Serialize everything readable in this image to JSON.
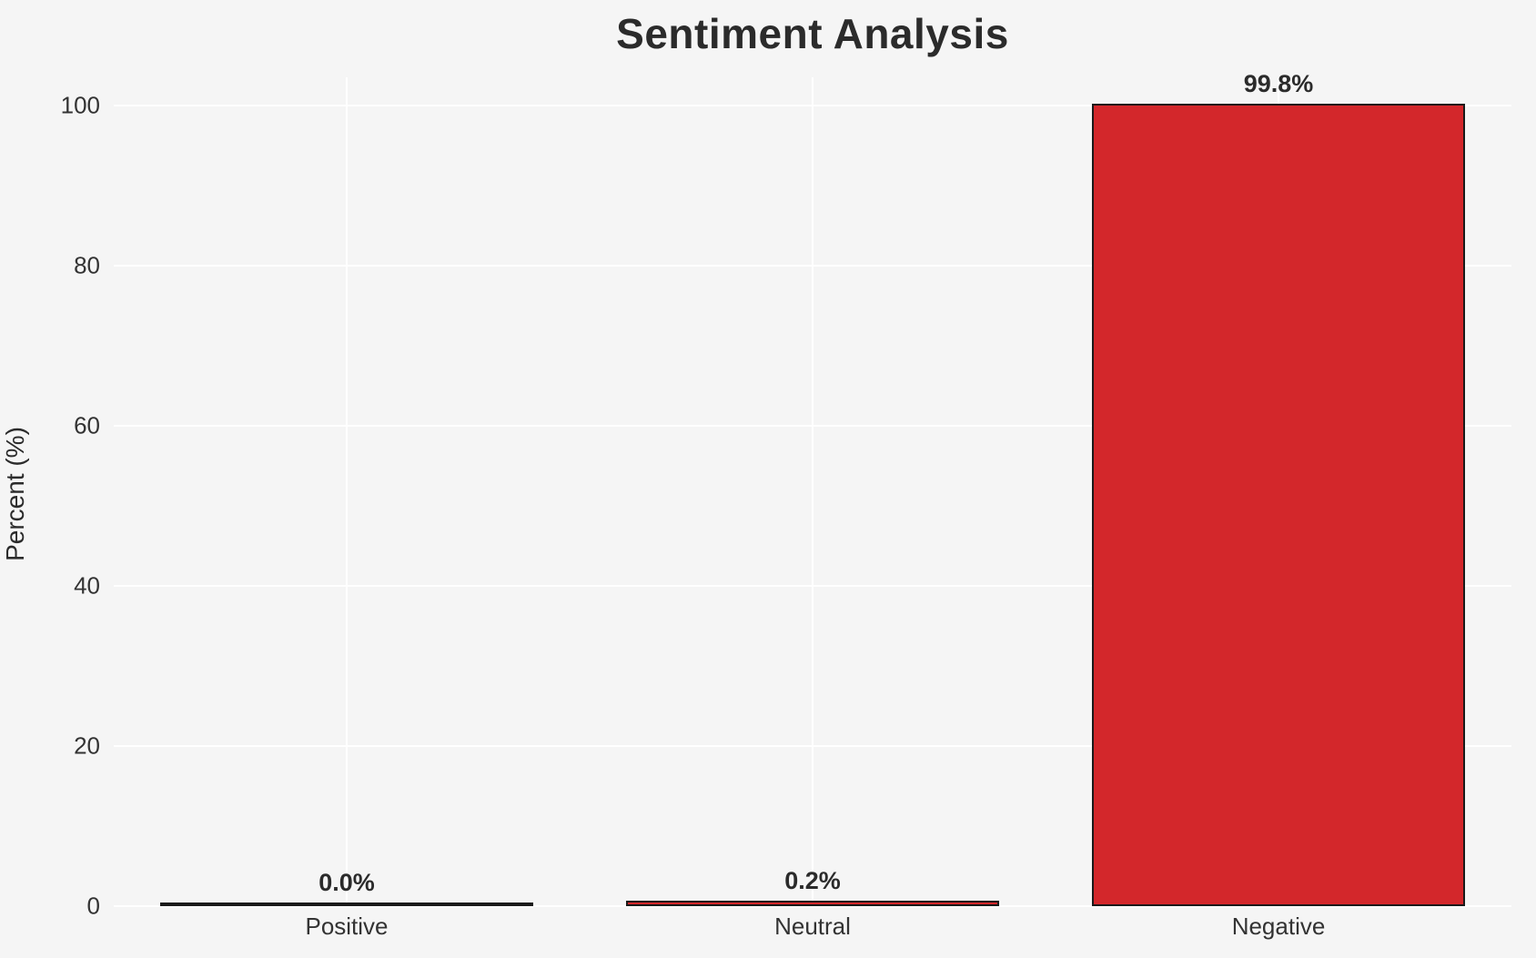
{
  "chart_data": {
    "type": "bar",
    "title": "Sentiment Analysis",
    "ylabel": "Percent (%)",
    "xlabel": "",
    "categories": [
      "Positive",
      "Neutral",
      "Negative"
    ],
    "values": [
      0.0,
      0.2,
      99.8
    ],
    "bar_labels": [
      "0.0%",
      "0.2%",
      "99.8%"
    ],
    "yticks": [
      0,
      20,
      40,
      60,
      80,
      100
    ],
    "ylim": [
      0,
      103.5
    ],
    "grid": "horizontal and vertical white gridlines",
    "legend_position": "none",
    "colors": {
      "background": "#f5f5f5",
      "gridline": "#ffffff",
      "bar_fill": "#d3272b",
      "bar_edge": "#1a1a1a",
      "tick_text": "#333333",
      "title_text": "#2b2b2b"
    }
  }
}
